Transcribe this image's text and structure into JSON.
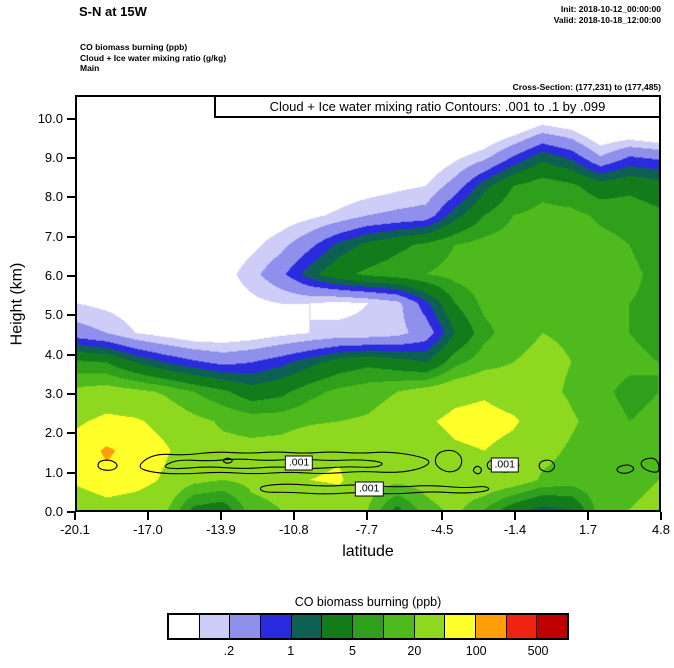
{
  "header": {
    "title": "S-N at 15W",
    "init": "Init: 2018-10-12_00:00:00",
    "valid": "Valid: 2018-10-18_12:00:00",
    "meta_lines": [
      "CO biomass burning   (ppb)",
      "Cloud + Ice water mixing ratio   (g/kg)",
      "Main"
    ],
    "cross_section": "Cross-Section: (177,231) to (177,485)"
  },
  "plot": {
    "contour_box": "Cloud + Ice water mixing ratio Contours: .001 to .1 by .099",
    "ylabel": "Height (km)",
    "xlabel": "latitude",
    "y_ticks": [
      "0.0",
      "1.0",
      "2.0",
      "3.0",
      "4.0",
      "5.0",
      "6.0",
      "7.0",
      "8.0",
      "9.0",
      "10.0"
    ],
    "x_ticks": [
      "-20.1",
      "-17.0",
      "-13.9",
      "-10.8",
      "-7.7",
      "-4.5",
      "-1.4",
      "1.7",
      "4.8"
    ]
  },
  "colorbar": {
    "title": "CO biomass burning  (ppb)",
    "labels": [
      ".2",
      "1",
      "5",
      "20",
      "100",
      "500"
    ],
    "label_boundaries": [
      2,
      4,
      6,
      8,
      10,
      12
    ]
  },
  "chart_data": {
    "type": "heatmap",
    "title": "CO biomass burning (ppb) cross-section S-N at 15W with Cloud + Ice water mixing ratio contours",
    "xlabel": "latitude",
    "ylabel": "Height (km)",
    "x_range": [
      -20.1,
      4.8
    ],
    "y_range": [
      0,
      10.6
    ],
    "x_ticks": [
      -20.1,
      -17.0,
      -13.9,
      -10.8,
      -7.7,
      -4.5,
      -1.4,
      1.7,
      4.8
    ],
    "y_ticks": [
      0,
      1,
      2,
      3,
      4,
      5,
      6,
      7,
      8,
      9,
      10
    ],
    "levels": [
      0.1,
      0.2,
      0.5,
      1,
      2,
      5,
      10,
      20,
      50,
      100,
      200,
      500
    ],
    "colors": [
      "#FFFFFF",
      "#CDCDF8",
      "#8F8FEC",
      "#2B2BDE",
      "#0E6152",
      "#127C1D",
      "#2FA01C",
      "#4FBA1E",
      "#8ED820",
      "#FFFF2A",
      "#FF9D0A",
      "#F02310",
      "#C00000"
    ],
    "grid": {
      "lats": [
        -20.1,
        -18.9,
        -17.6,
        -16.4,
        -15.1,
        -13.9,
        -12.6,
        -11.4,
        -10.1,
        -8.9,
        -7.7,
        -6.4,
        -5.2,
        -3.9,
        -2.7,
        -1.4,
        -0.2,
        1.1,
        2.3,
        3.6,
        4.8
      ],
      "heights_km": [
        0,
        0.76,
        1.51,
        2.27,
        3.03,
        3.79,
        4.54,
        5.3,
        6.06,
        6.81,
        7.57,
        8.33,
        9.09,
        9.84,
        10.6
      ],
      "co_ppb": [
        [
          25,
          35,
          30,
          25,
          4,
          3,
          15,
          20,
          25,
          30,
          20,
          4,
          15,
          25,
          10,
          3,
          1.5,
          2,
          15,
          20,
          25
        ],
        [
          60,
          85,
          70,
          45,
          25,
          20,
          25,
          28,
          50,
          55,
          30,
          25,
          28,
          40,
          45,
          35,
          18,
          15,
          18,
          16,
          20
        ],
        [
          70,
          110,
          80,
          55,
          35,
          25,
          25,
          28,
          40,
          45,
          30,
          28,
          35,
          45,
          50,
          40,
          25,
          18,
          15,
          12,
          15
        ],
        [
          45,
          60,
          55,
          40,
          25,
          18,
          15,
          15,
          18,
          20,
          22,
          30,
          45,
          60,
          65,
          55,
          35,
          22,
          15,
          10,
          12
        ],
        [
          25,
          30,
          25,
          18,
          10,
          6,
          3,
          4,
          8,
          12,
          15,
          20,
          30,
          40,
          45,
          35,
          25,
          18,
          12,
          8,
          10
        ],
        [
          6,
          5,
          2,
          1,
          0.6,
          0.4,
          0.5,
          0.8,
          1.5,
          3,
          4,
          3,
          2,
          8,
          15,
          20,
          25,
          20,
          15,
          12,
          10
        ],
        [
          0.3,
          0.2,
          0.1,
          0.07,
          0.05,
          0.05,
          0.06,
          0.08,
          0.1,
          0.12,
          0.12,
          0.15,
          0.3,
          2,
          8,
          15,
          20,
          18,
          12,
          10,
          8
        ],
        [
          0.1,
          0.08,
          0.06,
          0.05,
          0.05,
          0.06,
          0.08,
          0.1,
          0.1,
          0.08,
          0.1,
          0.15,
          0.8,
          5,
          12,
          15,
          16,
          14,
          12,
          10,
          9
        ],
        [
          0.05,
          0.05,
          0.04,
          0.04,
          0.05,
          0.07,
          0.15,
          0.4,
          1.5,
          4,
          6,
          8,
          10,
          13,
          15,
          16,
          15,
          14,
          12,
          11,
          9
        ],
        [
          0.04,
          0.04,
          0.03,
          0.03,
          0.04,
          0.05,
          0.08,
          0.15,
          0.4,
          1.2,
          2.5,
          4,
          6,
          10,
          13,
          14,
          14,
          13,
          12,
          10,
          8
        ],
        [
          0.03,
          0.03,
          0.03,
          0.03,
          0.03,
          0.04,
          0.05,
          0.06,
          0.08,
          0.12,
          0.2,
          0.25,
          0.3,
          1.5,
          5,
          10,
          12,
          12,
          9,
          8,
          6
        ],
        [
          0.02,
          0.02,
          0.02,
          0.02,
          0.02,
          0.03,
          0.03,
          0.04,
          0.04,
          0.05,
          0.06,
          0.08,
          0.1,
          0.3,
          1.5,
          5,
          8,
          6,
          3,
          4,
          3
        ],
        [
          0.02,
          0.02,
          0.02,
          0.02,
          0.02,
          0.02,
          0.02,
          0.02,
          0.03,
          0.03,
          0.03,
          0.04,
          0.04,
          0.08,
          0.15,
          0.5,
          1.5,
          0.8,
          0.2,
          0.5,
          0.4
        ],
        [
          0.01,
          0.01,
          0.01,
          0.01,
          0.01,
          0.01,
          0.01,
          0.01,
          0.01,
          0.01,
          0.01,
          0.01,
          0.01,
          0.02,
          0.03,
          0.05,
          0.12,
          0.08,
          0.03,
          0.03,
          0.02
        ],
        [
          0.01,
          0.01,
          0.01,
          0.01,
          0.01,
          0.01,
          0.01,
          0.01,
          0.01,
          0.01,
          0.01,
          0.01,
          0.01,
          0.01,
          0.01,
          0.01,
          0.01,
          0.01,
          0.01,
          0.01,
          0.01
        ]
      ]
    },
    "cloud_contours": {
      "variable": "Cloud + Ice water mixing ratio (g/kg)",
      "levels_text": ".001 to .1 by .099",
      "labels": [
        {
          "text": ".001",
          "lat": -10.6,
          "km": 1.2
        },
        {
          "text": ".001",
          "lat": -7.6,
          "km": 0.55
        },
        {
          "text": ".001",
          "lat": -1.8,
          "km": 1.15
        }
      ],
      "paths": [
        [
          [
            -19.2,
            1.05
          ],
          [
            -18.6,
            1.0
          ],
          [
            -18.3,
            1.15
          ],
          [
            -18.7,
            1.3
          ],
          [
            -19.2,
            1.25
          ]
        ],
        [
          [
            -17.6,
            1.1
          ],
          [
            -16.8,
            1.45
          ],
          [
            -15.5,
            1.4
          ],
          [
            -14.2,
            1.5
          ],
          [
            -12.8,
            1.45
          ],
          [
            -11.6,
            1.5
          ],
          [
            -10.4,
            1.45
          ],
          [
            -9.2,
            1.5
          ],
          [
            -8.0,
            1.45
          ],
          [
            -6.8,
            1.5
          ],
          [
            -5.6,
            1.4
          ],
          [
            -4.9,
            1.25
          ],
          [
            -5.4,
            1.05
          ],
          [
            -6.5,
            0.95
          ],
          [
            -8.0,
            1.0
          ],
          [
            -9.5,
            0.92
          ],
          [
            -11.0,
            0.98
          ],
          [
            -12.5,
            0.92
          ],
          [
            -14.0,
            0.98
          ],
          [
            -15.5,
            0.92
          ],
          [
            -16.8,
            0.95
          ]
        ],
        [
          [
            -16.5,
            1.1
          ],
          [
            -15.8,
            1.3
          ],
          [
            -14.5,
            1.25
          ],
          [
            -13.2,
            1.32
          ],
          [
            -11.9,
            1.26
          ],
          [
            -10.6,
            1.32
          ],
          [
            -9.3,
            1.26
          ],
          [
            -8.0,
            1.3
          ],
          [
            -6.9,
            1.22
          ],
          [
            -7.3,
            1.08
          ],
          [
            -8.6,
            1.12
          ],
          [
            -10.0,
            1.05
          ],
          [
            -11.5,
            1.12
          ],
          [
            -13.0,
            1.05
          ],
          [
            -14.5,
            1.12
          ],
          [
            -15.8,
            1.05
          ]
        ],
        [
          [
            -12.3,
            0.62
          ],
          [
            -11.0,
            0.68
          ],
          [
            -9.5,
            0.6
          ],
          [
            -8.0,
            0.66
          ],
          [
            -6.5,
            0.58
          ],
          [
            -5.0,
            0.64
          ],
          [
            -3.5,
            0.56
          ],
          [
            -2.6,
            0.62
          ],
          [
            -2.4,
            0.5
          ],
          [
            -3.5,
            0.42
          ],
          [
            -5.0,
            0.48
          ],
          [
            -6.5,
            0.4
          ],
          [
            -8.0,
            0.46
          ],
          [
            -9.5,
            0.4
          ],
          [
            -11.0,
            0.46
          ],
          [
            -12.2,
            0.45
          ]
        ],
        [
          [
            -4.6,
            1.5
          ],
          [
            -4.0,
            1.55
          ],
          [
            -3.6,
            1.35
          ],
          [
            -3.7,
            1.05
          ],
          [
            -4.2,
            0.95
          ],
          [
            -4.7,
            1.1
          ],
          [
            -4.8,
            1.3
          ]
        ],
        [
          [
            -3.0,
            1.15
          ],
          [
            -2.75,
            1.05
          ],
          [
            -2.9,
            0.9
          ],
          [
            -3.2,
            1.0
          ]
        ],
        [
          [
            -2.4,
            1.3
          ],
          [
            -1.5,
            1.35
          ],
          [
            -1.1,
            1.15
          ],
          [
            -1.5,
            0.95
          ],
          [
            -2.4,
            1.0
          ],
          [
            -2.6,
            1.15
          ]
        ],
        [
          [
            -0.3,
            1.25
          ],
          [
            0.15,
            1.3
          ],
          [
            0.4,
            1.12
          ],
          [
            0.1,
            0.95
          ],
          [
            -0.35,
            1.05
          ]
        ],
        [
          [
            3.0,
            1.1
          ],
          [
            3.5,
            1.18
          ],
          [
            3.8,
            1.05
          ],
          [
            3.4,
            0.92
          ],
          [
            3.0,
            0.98
          ]
        ],
        [
          [
            4.1,
            1.3
          ],
          [
            4.6,
            1.35
          ],
          [
            4.8,
            1.18
          ],
          [
            4.8,
            0.95
          ],
          [
            4.3,
            1.0
          ],
          [
            4.0,
            1.15
          ]
        ],
        [
          [
            -13.9,
            1.28
          ],
          [
            -13.6,
            1.35
          ],
          [
            -13.4,
            1.25
          ],
          [
            -13.7,
            1.18
          ]
        ]
      ]
    }
  }
}
